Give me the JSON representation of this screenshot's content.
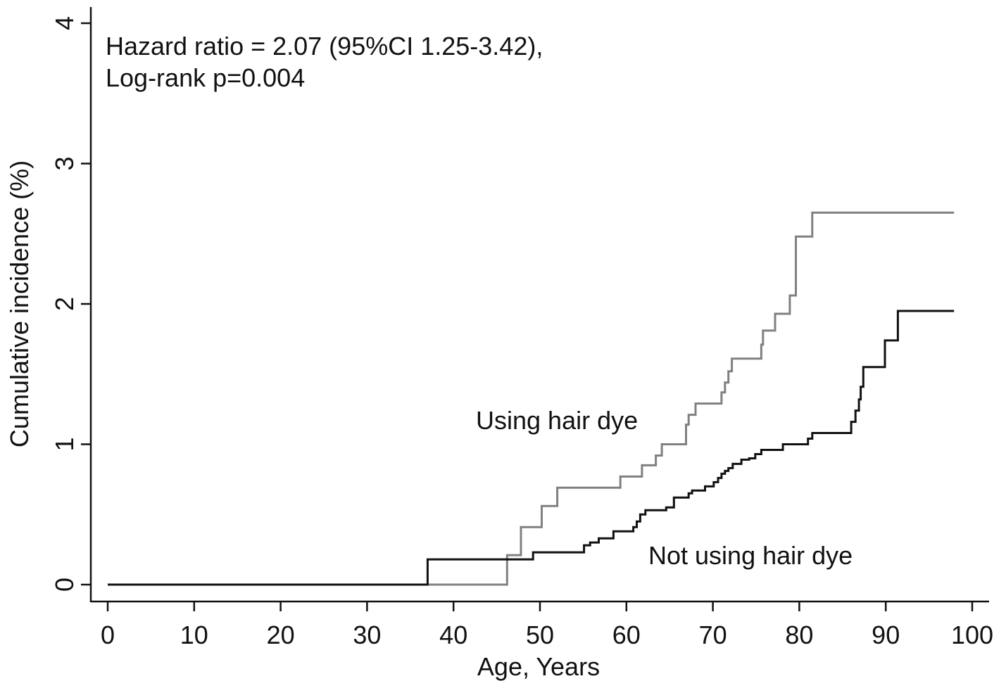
{
  "chart_data": {
    "type": "line",
    "step": true,
    "xlabel": "Age, Years",
    "ylabel": "Cumulative incidence (%)",
    "xlim": [
      0,
      100
    ],
    "ylim": [
      0,
      4
    ],
    "xticks": [
      0,
      10,
      20,
      30,
      40,
      50,
      60,
      70,
      80,
      90,
      100
    ],
    "yticks": [
      0,
      1,
      2,
      3,
      4
    ],
    "grid": false,
    "annotations": {
      "line1": "Hazard ratio = 2.07 (95%CI 1.25-3.42),",
      "line2": "Log-rank p=0.004"
    },
    "series": [
      {
        "name": "Using hair dye",
        "color": "#808080",
        "x": [
          0,
          46.2,
          46.2,
          47.8,
          47.8,
          50.2,
          50.2,
          52.0,
          52.0,
          59.3,
          59.3,
          61.8,
          61.8,
          63.4,
          63.4,
          64.1,
          64.1,
          66.9,
          66.9,
          67.2,
          67.2,
          68.0,
          68.0,
          71.0,
          71.0,
          71.4,
          71.4,
          71.8,
          71.8,
          72.2,
          72.2,
          75.6,
          75.6,
          75.8,
          75.8,
          77.2,
          77.2,
          78.9,
          78.9,
          79.3,
          79.3,
          79.6,
          79.6,
          81.5,
          81.5,
          83.0,
          83.0,
          97.9
        ],
        "y": [
          0,
          0,
          0.21,
          0.21,
          0.41,
          0.41,
          0.56,
          0.56,
          0.69,
          0.69,
          0.77,
          0.77,
          0.85,
          0.85,
          0.92,
          0.92,
          1.0,
          1.0,
          1.14,
          1.14,
          1.21,
          1.21,
          1.29,
          1.29,
          1.37,
          1.37,
          1.44,
          1.44,
          1.52,
          1.52,
          1.61,
          1.61,
          1.71,
          1.71,
          1.81,
          1.81,
          1.93,
          1.93,
          2.06,
          2.06,
          2.06,
          2.06,
          2.48,
          2.48,
          2.65,
          2.65,
          2.65,
          2.65
        ]
      },
      {
        "name": "Not using hair dye",
        "color": "#111111",
        "x": [
          0,
          37.0,
          37.0,
          49.2,
          49.2,
          55.1,
          55.1,
          55.8,
          55.8,
          56.8,
          56.8,
          58.5,
          58.5,
          60.8,
          60.8,
          61.2,
          61.2,
          61.6,
          61.6,
          62.2,
          62.2,
          64.6,
          64.6,
          65.5,
          65.5,
          67.2,
          67.2,
          67.6,
          67.6,
          69.1,
          69.1,
          70.1,
          70.1,
          70.6,
          70.6,
          71.0,
          71.0,
          71.4,
          71.4,
          71.8,
          71.8,
          72.3,
          72.3,
          73.3,
          73.3,
          74.2,
          74.2,
          74.9,
          74.9,
          75.6,
          75.6,
          76.6,
          76.6,
          78.1,
          78.1,
          81.0,
          81.0,
          81.5,
          81.5,
          86.0,
          86.0,
          86.5,
          86.5,
          86.9,
          86.9,
          87.1,
          87.1,
          87.4,
          87.4,
          89.9,
          89.9,
          91.4,
          91.4,
          92.0,
          92.0,
          97.9
        ],
        "y": [
          0,
          0,
          0.18,
          0.18,
          0.23,
          0.23,
          0.28,
          0.28,
          0.3,
          0.3,
          0.33,
          0.33,
          0.38,
          0.38,
          0.41,
          0.41,
          0.45,
          0.45,
          0.5,
          0.5,
          0.53,
          0.53,
          0.55,
          0.55,
          0.62,
          0.62,
          0.65,
          0.65,
          0.67,
          0.67,
          0.7,
          0.7,
          0.73,
          0.73,
          0.76,
          0.76,
          0.79,
          0.79,
          0.81,
          0.81,
          0.83,
          0.83,
          0.86,
          0.86,
          0.89,
          0.89,
          0.9,
          0.9,
          0.93,
          0.93,
          0.96,
          0.96,
          0.96,
          0.96,
          1.0,
          1.0,
          1.04,
          1.04,
          1.08,
          1.08,
          1.16,
          1.16,
          1.24,
          1.24,
          1.32,
          1.32,
          1.41,
          1.41,
          1.55,
          1.55,
          1.74,
          1.74,
          1.95,
          1.95,
          1.95,
          1.95
        ]
      }
    ]
  }
}
